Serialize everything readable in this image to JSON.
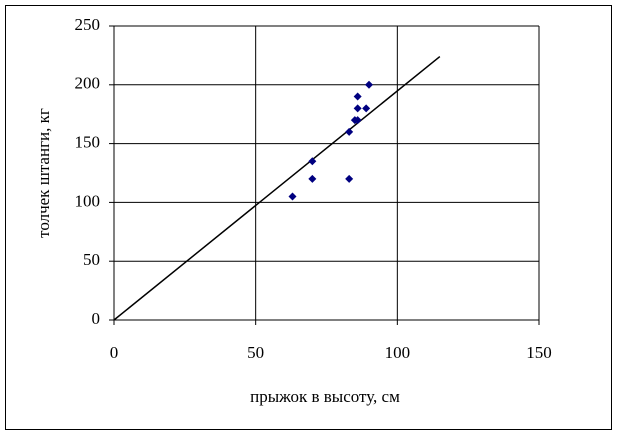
{
  "chart_data": {
    "type": "scatter",
    "x_label": "прыжок в высоту, см",
    "y_label": "толчек штанги, кг",
    "series": [
      {
        "color": "#000080",
        "x": [
          63,
          70,
          70,
          83,
          83,
          85,
          86,
          86,
          86,
          89,
          90
        ],
        "values": [
          105,
          135,
          120,
          120,
          160,
          170,
          190,
          180,
          170,
          180,
          200
        ]
      }
    ],
    "trendline": {
      "color": "#000000",
      "x": [
        0,
        115
      ],
      "values": [
        0,
        224
      ]
    },
    "xlim": [
      0,
      150
    ],
    "ylim": [
      0,
      250
    ],
    "xticks": [
      0,
      50,
      100,
      150
    ],
    "yticks": [
      0,
      50,
      100,
      150,
      200,
      250
    ],
    "grid": true
  }
}
